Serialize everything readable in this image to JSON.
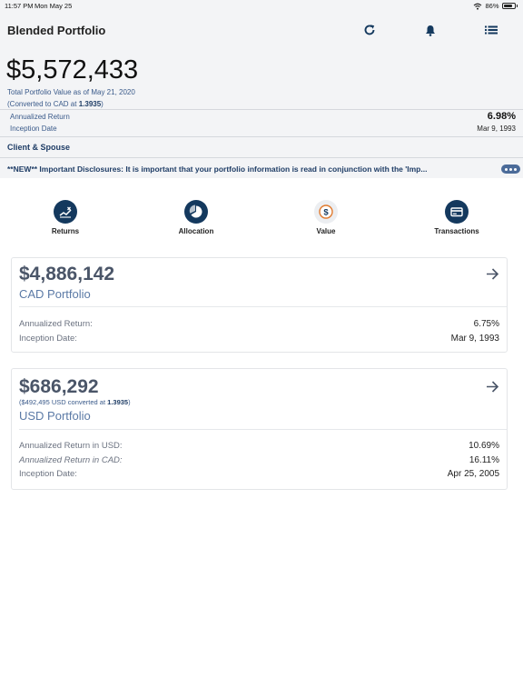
{
  "status_bar": {
    "time": "11:57 PM",
    "date": "Mon May 25",
    "battery": "86%",
    "battery_level": 0.86
  },
  "header": {
    "title": "Blended Portfolio"
  },
  "summary": {
    "total_value": "$5,572,433",
    "caption": "Total Portfolio Value as of May 21, 2020",
    "converted_prefix": "(Converted to CAD at ",
    "converted_rate": "1.3935",
    "converted_suffix": ")",
    "annualized_label": "Annualized Return",
    "annualized_value": "6.98%",
    "inception_label": "Inception Date",
    "inception_value": "Mar 9, 1993",
    "client": "Client & Spouse",
    "disclosure": "**NEW** Important Disclosures:  It is important that your portfolio information is read in conjunction with the 'Imp..."
  },
  "nav": [
    {
      "label": "Returns",
      "icon": "returns-icon"
    },
    {
      "label": "Allocation",
      "icon": "allocation-icon"
    },
    {
      "label": "Value",
      "icon": "value-icon"
    },
    {
      "label": "Transactions",
      "icon": "transactions-icon"
    }
  ],
  "cad_card": {
    "amount": "$4,886,142",
    "name": "CAD Portfolio",
    "rows": [
      {
        "label": "Annualized Return:",
        "value": "6.75%"
      },
      {
        "label": "Inception Date:",
        "value": "Mar 9, 1993"
      }
    ]
  },
  "usd_card": {
    "amount": "$686,292",
    "sub_prefix": "($492,495 USD converted at ",
    "sub_rate": "1.3935",
    "sub_suffix": ")",
    "name": "USD Portfolio",
    "rows": [
      {
        "label": "Annualized Return in USD:",
        "value": "10.69%"
      },
      {
        "label": "Annualized Return in CAD:",
        "value": "16.11%"
      },
      {
        "label": "Inception Date:",
        "value": "Apr 25, 2005"
      }
    ]
  },
  "colors": {
    "navy": "#14395e",
    "accent_orange": "#e07a2e",
    "link_blue": "#3a5a8a",
    "panel_bg": "#f3f4f6"
  }
}
